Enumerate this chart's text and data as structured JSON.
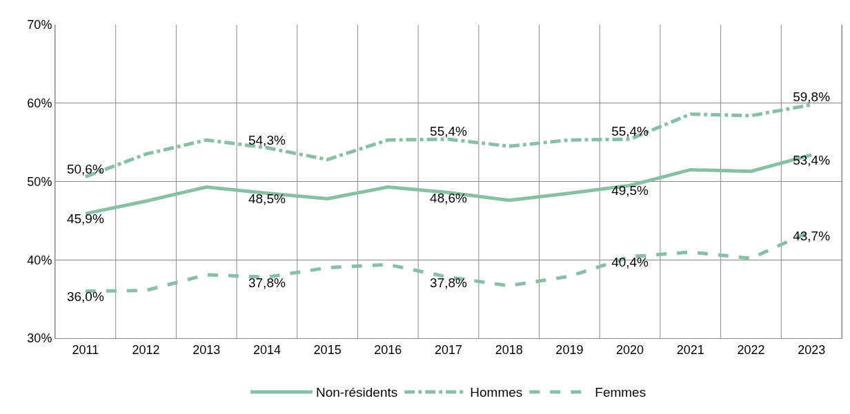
{
  "chart_data": {
    "type": "line",
    "categories": [
      "2011",
      "2012",
      "2013",
      "2014",
      "2015",
      "2016",
      "2017",
      "2018",
      "2019",
      "2020",
      "2021",
      "2022",
      "2023"
    ],
    "ylim": [
      30,
      70
    ],
    "yticks": [
      {
        "value": 30,
        "label": "30%"
      },
      {
        "value": 40,
        "label": "40%"
      },
      {
        "value": 50,
        "label": "50%"
      },
      {
        "value": 60,
        "label": "60%"
      },
      {
        "value": 70,
        "label": "70%"
      }
    ],
    "grid": true,
    "legend": "bottom",
    "marker": "none",
    "series": [
      {
        "name": "Non-résidents",
        "color": "#88bfa5",
        "line_style": "solid",
        "values": [
          45.9,
          47.5,
          49.3,
          48.5,
          47.8,
          49.3,
          48.6,
          47.6,
          48.5,
          49.5,
          51.5,
          51.3,
          53.4
        ],
        "value_labels": [
          "45,9%",
          null,
          null,
          "48,5%",
          null,
          null,
          "48,6%",
          null,
          null,
          "49,5%",
          null,
          null,
          "53,4%"
        ]
      },
      {
        "name": "Hommes",
        "color": "#88bfa5",
        "line_style": "dashdot",
        "values": [
          50.6,
          53.5,
          55.3,
          54.3,
          52.8,
          55.3,
          55.4,
          54.5,
          55.3,
          55.4,
          58.6,
          58.4,
          59.8
        ],
        "value_labels": [
          "50,6%",
          null,
          null,
          "54,3%",
          null,
          null,
          "55,4%",
          null,
          null,
          "55,4%",
          null,
          null,
          "59,8%"
        ]
      },
      {
        "name": "Femmes",
        "color": "#88bfa5",
        "line_style": "dashed",
        "values": [
          36.0,
          36.1,
          38.1,
          37.8,
          39.0,
          39.4,
          37.8,
          36.7,
          37.9,
          40.4,
          41.0,
          40.2,
          43.7
        ],
        "value_labels": [
          "36,0%",
          null,
          null,
          "37,8%",
          null,
          null,
          "37,8%",
          null,
          null,
          "40,4%",
          null,
          null,
          "43,7%"
        ]
      }
    ]
  }
}
